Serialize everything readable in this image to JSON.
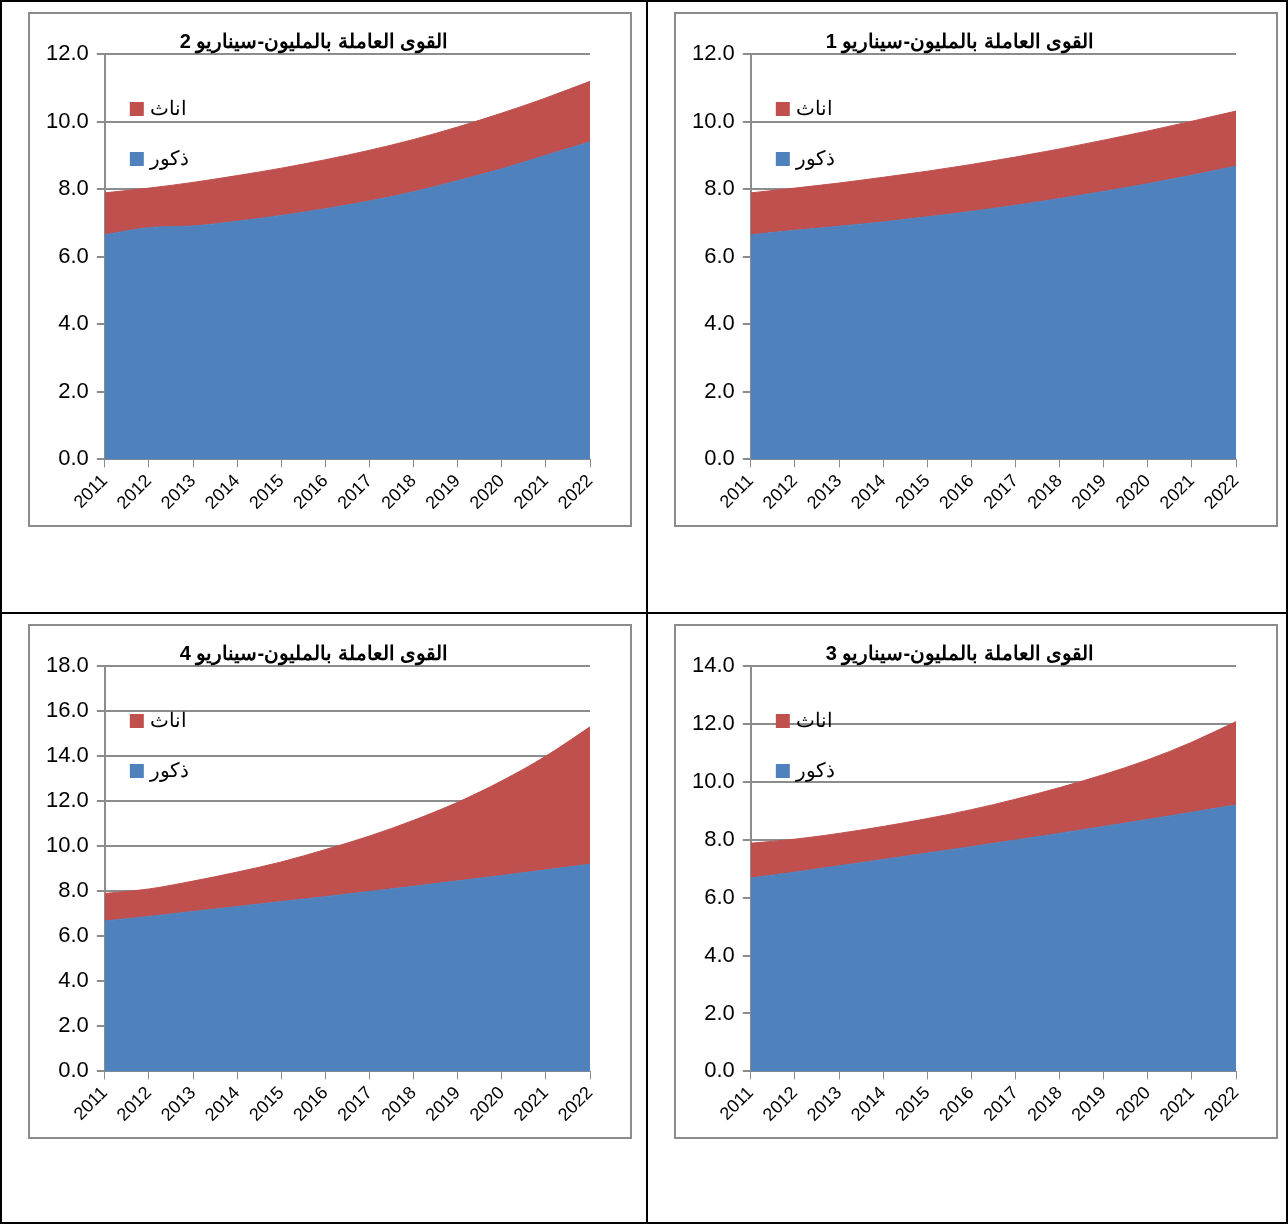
{
  "chart_data": [
    {
      "type": "area",
      "title": "القوى العاملة بالمليون-سيناريو 1",
      "categories": [
        "2011",
        "2012",
        "2013",
        "2014",
        "2015",
        "2016",
        "2017",
        "2018",
        "2019",
        "2020",
        "2021",
        "2022"
      ],
      "stacked": true,
      "grid": "y",
      "legend": "top left",
      "ylim": [
        0,
        12
      ],
      "yticks": [
        {
          "value": 0,
          "label": "0.0"
        },
        {
          "value": 2,
          "label": "2.0"
        },
        {
          "value": 4,
          "label": "4.0"
        },
        {
          "value": 6,
          "label": "6.0"
        },
        {
          "value": 8,
          "label": "8.0"
        },
        {
          "value": 10,
          "label": "10.0"
        },
        {
          "value": 12,
          "label": "12.0"
        }
      ],
      "series": [
        {
          "name": "ذكور",
          "color": "#4f81bd",
          "values": [
            6.65,
            6.78,
            6.9,
            7.03,
            7.18,
            7.34,
            7.52,
            7.72,
            7.93,
            8.16,
            8.41,
            8.68
          ]
        },
        {
          "name": "اناث",
          "color": "#c0504d",
          "values": [
            1.24,
            1.25,
            1.28,
            1.32,
            1.35,
            1.39,
            1.43,
            1.47,
            1.52,
            1.56,
            1.6,
            1.63
          ]
        }
      ]
    },
    {
      "type": "area",
      "title": "القوى العاملة بالمليون-سيناريو 2",
      "categories": [
        "2011",
        "2012",
        "2013",
        "2014",
        "2015",
        "2016",
        "2017",
        "2018",
        "2019",
        "2020",
        "2021",
        "2022"
      ],
      "stacked": true,
      "grid": "y",
      "legend": "top left",
      "ylim": [
        0,
        12
      ],
      "yticks": [
        {
          "value": 0,
          "label": "0.0"
        },
        {
          "value": 2,
          "label": "2.0"
        },
        {
          "value": 4,
          "label": "4.0"
        },
        {
          "value": 6,
          "label": "6.0"
        },
        {
          "value": 8,
          "label": "8.0"
        },
        {
          "value": 10,
          "label": "10.0"
        },
        {
          "value": 12,
          "label": "12.0"
        }
      ],
      "series": [
        {
          "name": "ذكور",
          "color": "#4f81bd",
          "values": [
            6.65,
            6.86,
            6.91,
            7.05,
            7.22,
            7.42,
            7.65,
            7.92,
            8.25,
            8.6,
            9.0,
            9.4
          ]
        },
        {
          "name": "اناث",
          "color": "#c0504d",
          "values": [
            1.24,
            1.17,
            1.29,
            1.35,
            1.4,
            1.45,
            1.5,
            1.55,
            1.59,
            1.65,
            1.7,
            1.79
          ]
        }
      ]
    },
    {
      "type": "area",
      "title": "القوى العاملة بالمليون-سيناريو 3",
      "categories": [
        "2011",
        "2012",
        "2013",
        "2014",
        "2015",
        "2016",
        "2017",
        "2018",
        "2019",
        "2020",
        "2021",
        "2022"
      ],
      "stacked": true,
      "grid": "y",
      "legend": "top left",
      "ylim": [
        0,
        14
      ],
      "yticks": [
        {
          "value": 0,
          "label": "0.0"
        },
        {
          "value": 2,
          "label": "2.0"
        },
        {
          "value": 4,
          "label": "4.0"
        },
        {
          "value": 6,
          "label": "6.0"
        },
        {
          "value": 8,
          "label": "8.0"
        },
        {
          "value": 10,
          "label": "10.0"
        },
        {
          "value": 12,
          "label": "12.0"
        },
        {
          "value": 14,
          "label": "14.0"
        }
      ],
      "series": [
        {
          "name": "ذكور",
          "color": "#4f81bd",
          "values": [
            6.68,
            6.88,
            7.1,
            7.32,
            7.54,
            7.76,
            7.99,
            8.22,
            8.46,
            8.7,
            8.95,
            9.2
          ]
        },
        {
          "name": "اناث",
          "color": "#c0504d",
          "values": [
            1.2,
            1.14,
            1.12,
            1.14,
            1.19,
            1.28,
            1.41,
            1.58,
            1.79,
            2.06,
            2.42,
            2.88
          ]
        }
      ]
    },
    {
      "type": "area",
      "title": "القوى العاملة بالمليون-سيناريو 4",
      "categories": [
        "2011",
        "2012",
        "2013",
        "2014",
        "2015",
        "2016",
        "2017",
        "2018",
        "2019",
        "2020",
        "2021",
        "2022"
      ],
      "stacked": true,
      "grid": "y",
      "legend": "top left",
      "ylim": [
        0,
        18
      ],
      "yticks": [
        {
          "value": 0,
          "label": "0.0"
        },
        {
          "value": 2,
          "label": "2.0"
        },
        {
          "value": 4,
          "label": "4.0"
        },
        {
          "value": 6,
          "label": "6.0"
        },
        {
          "value": 8,
          "label": "8.0"
        },
        {
          "value": 10,
          "label": "10.0"
        },
        {
          "value": 12,
          "label": "12.0"
        },
        {
          "value": 14,
          "label": "14.0"
        },
        {
          "value": 16,
          "label": "16.0"
        },
        {
          "value": 18,
          "label": "18.0"
        }
      ],
      "series": [
        {
          "name": "ذكور",
          "color": "#4f81bd",
          "values": [
            6.68,
            6.88,
            7.1,
            7.32,
            7.54,
            7.76,
            7.99,
            8.22,
            8.46,
            8.7,
            8.95,
            9.2
          ]
        },
        {
          "name": "اناث",
          "color": "#c0504d",
          "values": [
            1.22,
            1.22,
            1.35,
            1.53,
            1.76,
            2.09,
            2.46,
            2.93,
            3.49,
            4.2,
            5.05,
            6.1
          ]
        }
      ]
    }
  ]
}
